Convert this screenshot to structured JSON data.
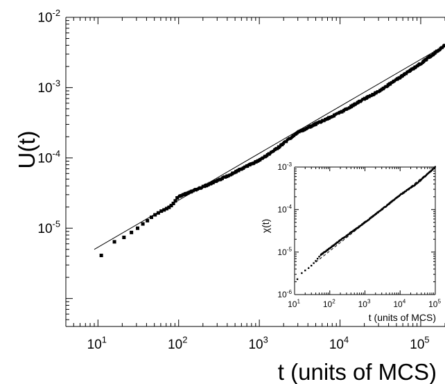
{
  "chart_data": [
    {
      "type": "scatter",
      "scale": "log-log",
      "xlabel": "t (units of MCS)",
      "ylabel": "U(t)",
      "xlim": [
        4,
        200000
      ],
      "ylim": [
        4e-07,
        0.01
      ],
      "x_tick_labels": [
        {
          "value": 10,
          "base": "10",
          "exp": "1"
        },
        {
          "value": 100,
          "base": "10",
          "exp": "2"
        },
        {
          "value": 1000,
          "base": "10",
          "exp": "3"
        },
        {
          "value": 10000,
          "base": "10",
          "exp": "4"
        },
        {
          "value": 100000,
          "base": "10",
          "exp": "5"
        }
      ],
      "y_tick_labels": [
        {
          "value": 1e-05,
          "base": "10",
          "exp": "-5"
        },
        {
          "value": 0.0001,
          "base": "10",
          "exp": "-4"
        },
        {
          "value": 0.001,
          "base": "10",
          "exp": "-3"
        },
        {
          "value": 0.01,
          "base": "10",
          "exp": "-2"
        }
      ],
      "series": [
        {
          "marker": "square",
          "sparse_points": [
            [
              11,
              4.1e-06
            ],
            [
              16,
              6.4e-06
            ],
            [
              21,
              7.4e-06
            ],
            [
              26,
              8.7e-06
            ],
            [
              31,
              1e-05
            ],
            [
              36,
              1.15e-05
            ],
            [
              41,
              1.28e-05
            ],
            [
              46,
              1.43e-05
            ],
            [
              51,
              1.55e-05
            ],
            [
              56,
              1.65e-05
            ],
            [
              61,
              1.75e-05
            ],
            [
              66,
              1.82e-05
            ],
            [
              71,
              1.9e-05
            ],
            [
              76,
              1.98e-05
            ],
            [
              81,
              2.1e-05
            ],
            [
              86,
              2.25e-05
            ],
            [
              91,
              2.45e-05
            ],
            [
              96,
              2.7e-05
            ]
          ],
          "dense_curve_knots": [
            [
              100,
              2.8e-05
            ],
            [
              300,
              4.7e-05
            ],
            [
              1000,
              9.3e-05
            ],
            [
              1500,
              0.000125
            ],
            [
              3000,
              0.00023
            ],
            [
              10000,
              0.00044
            ],
            [
              20000,
              0.00069
            ],
            [
              30000,
              0.00088
            ],
            [
              100000,
              0.0022
            ],
            [
              200000,
              0.004
            ]
          ]
        }
      ],
      "fit_line": {
        "x": [
          9,
          200000
        ],
        "y": [
          5e-06,
          0.004
        ]
      },
      "grid": false
    },
    {
      "type": "scatter",
      "scale": "log-log",
      "role": "inset",
      "xlabel": "t (units of MCS)",
      "ylabel": "χ(t)",
      "xlim": [
        10,
        100000
      ],
      "ylim": [
        1e-06,
        0.001
      ],
      "x_tick_labels": [
        {
          "value": 10,
          "base": "10",
          "exp": "1"
        },
        {
          "value": 100,
          "base": "10",
          "exp": "2"
        },
        {
          "value": 1000,
          "base": "10",
          "exp": "3"
        },
        {
          "value": 10000,
          "base": "10",
          "exp": "4"
        },
        {
          "value": 100000,
          "base": "10",
          "exp": "5"
        }
      ],
      "y_tick_labels": [
        {
          "value": 1e-06,
          "base": "10",
          "exp": "-6"
        },
        {
          "value": 1e-05,
          "base": "10",
          "exp": "-5"
        },
        {
          "value": 0.0001,
          "base": "10",
          "exp": "-4"
        },
        {
          "value": 0.001,
          "base": "10",
          "exp": "-3"
        }
      ],
      "series": [
        {
          "marker": "square",
          "sparse_points": [
            [
              12,
              2.3e-06
            ],
            [
              16,
              3.2e-06
            ],
            [
              20,
              3.7e-06
            ],
            [
              25,
              4.2e-06
            ],
            [
              30,
              4.8e-06
            ],
            [
              35,
              5.5e-06
            ],
            [
              40,
              6.2e-06
            ],
            [
              45,
              7e-06
            ],
            [
              50,
              7.8e-06
            ]
          ],
          "dense_curve_knots": [
            [
              55,
              8.5e-06
            ],
            [
              200,
              1.9e-05
            ],
            [
              1000,
              5e-05
            ],
            [
              3000,
              0.0001
            ],
            [
              10000,
              0.00022
            ],
            [
              30000,
              0.00041
            ],
            [
              100000,
              0.001
            ]
          ]
        }
      ],
      "fit_line": {
        "x": [
          40,
          100000
        ],
        "y": [
          5.8e-06,
          0.001
        ]
      },
      "grid": false
    }
  ]
}
